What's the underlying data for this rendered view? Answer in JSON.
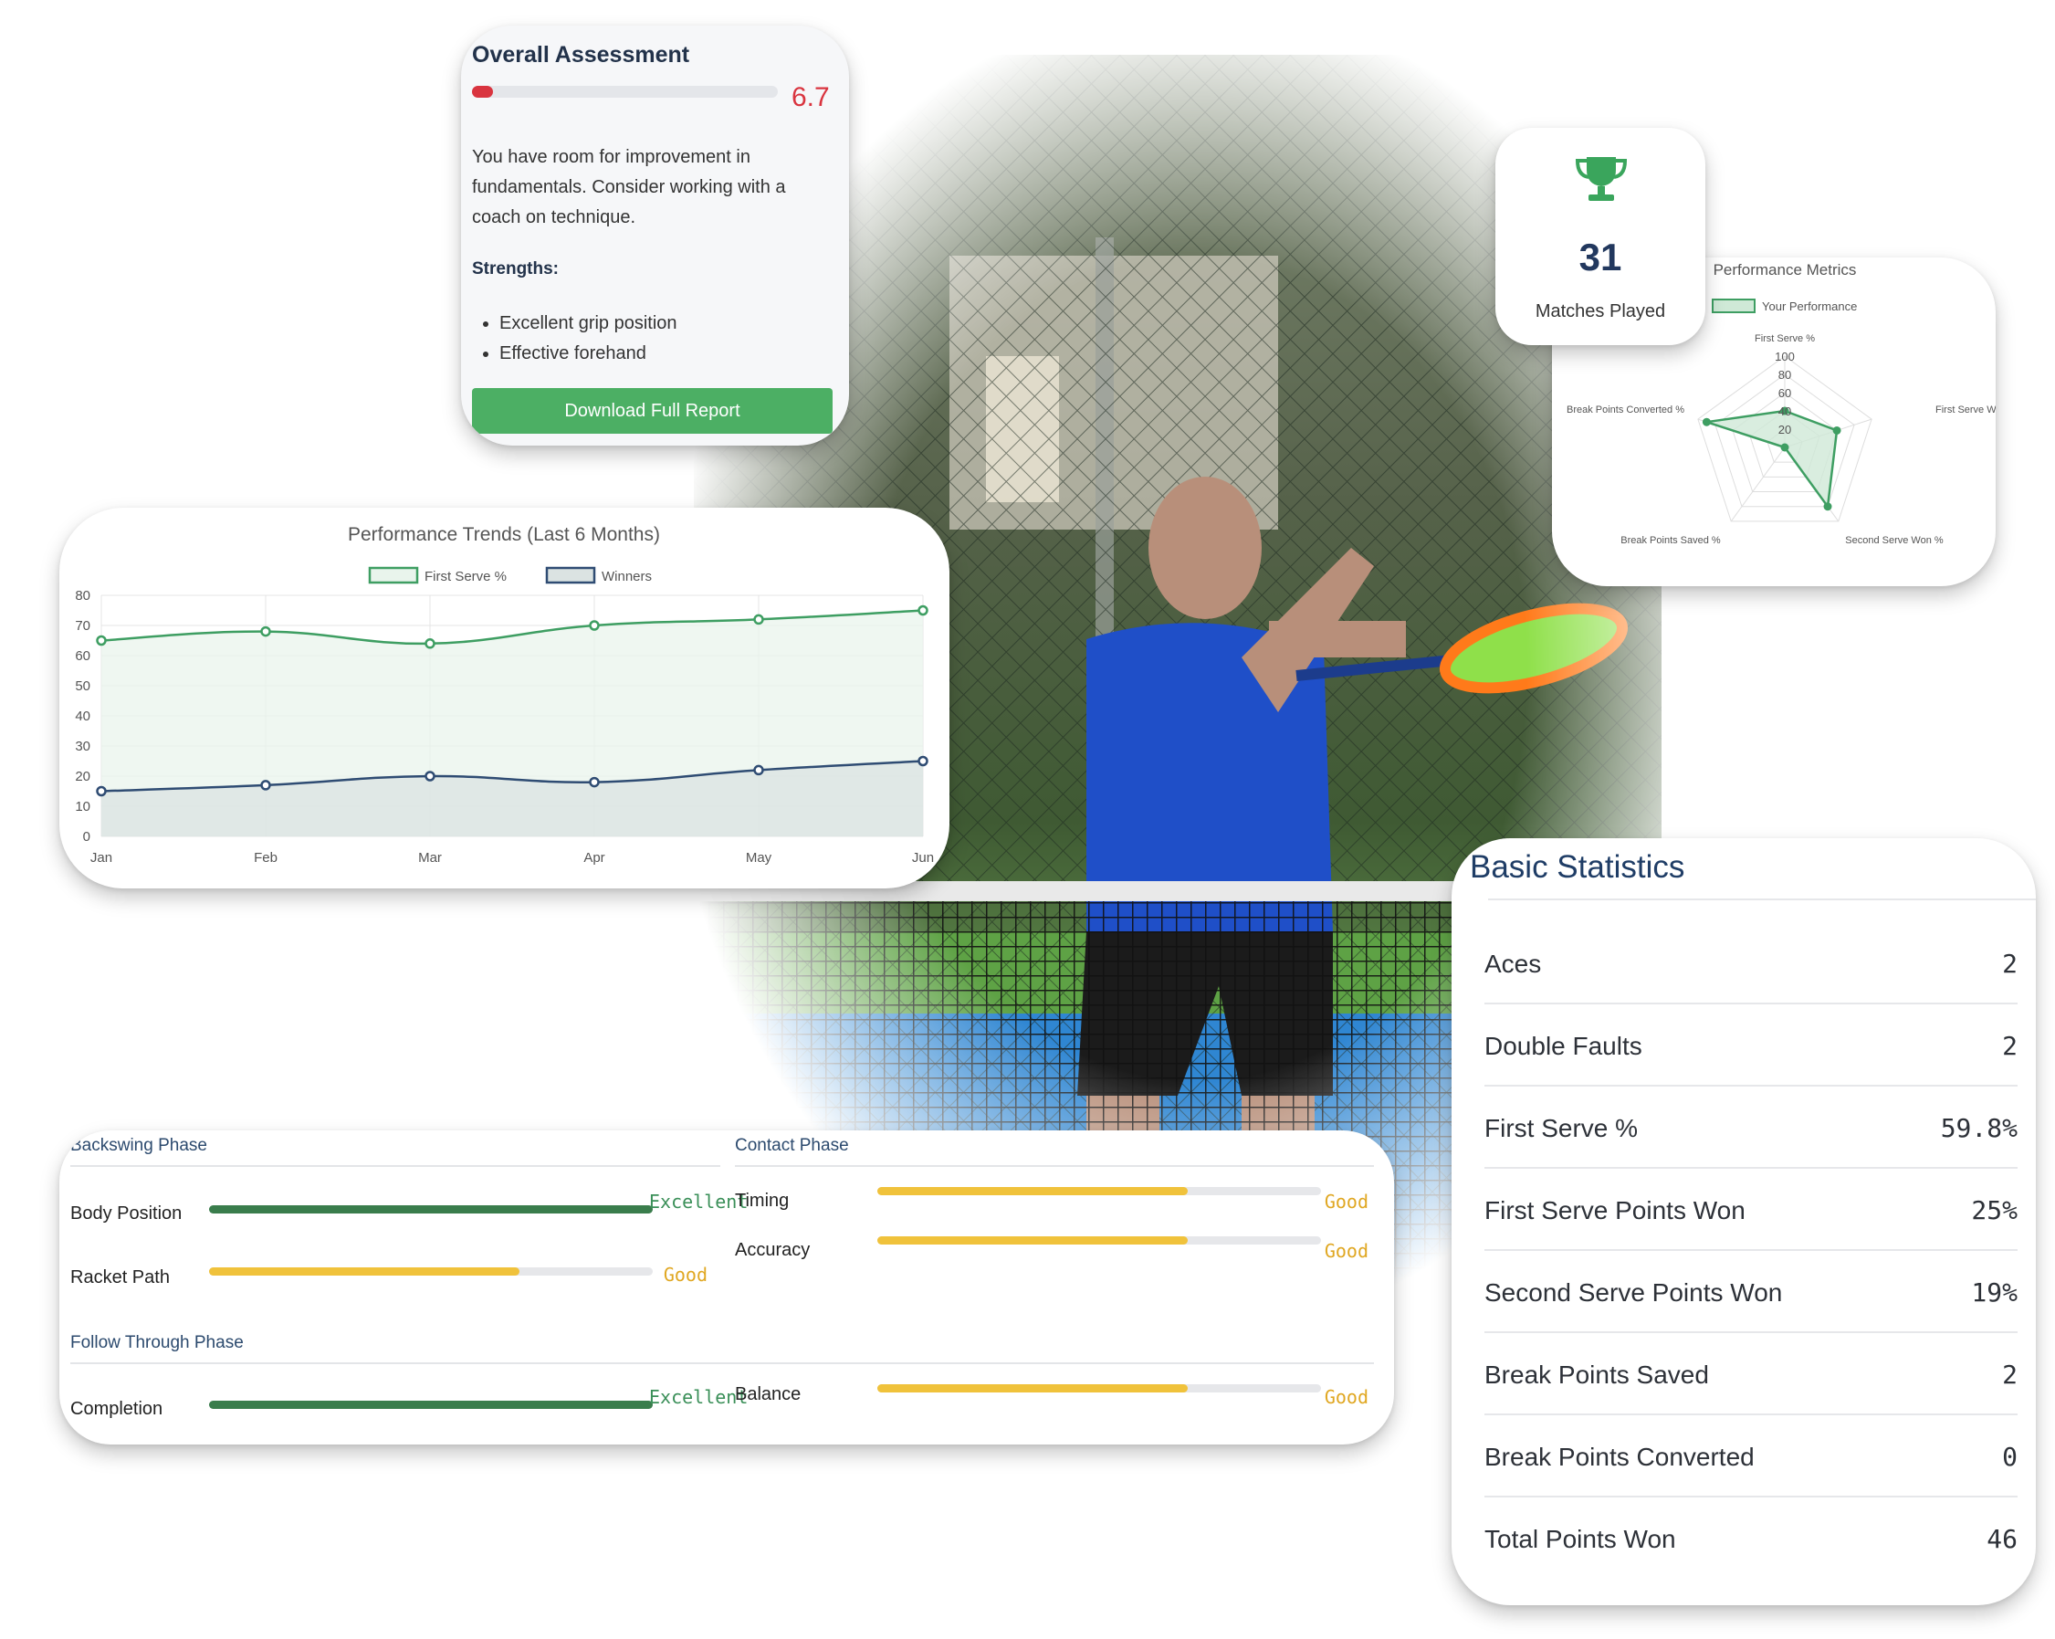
{
  "assessment": {
    "title": "Overall Assessment",
    "score": "6.7",
    "score_fraction": 0.07,
    "description": "You have room for improvement in fundamentals. Consider working with a coach on technique.",
    "strengths_label": "Strengths:",
    "strengths": [
      "Excellent grip position",
      "Effective forehand"
    ],
    "download_label": "Download Full Report",
    "colors": {
      "score": "#d9343f",
      "button": "#4caf64"
    }
  },
  "matches": {
    "icon": "trophy-icon",
    "count": "31",
    "label": "Matches Played",
    "colors": {
      "icon": "#3aa55c",
      "count": "#22385e"
    }
  },
  "chart_data": [
    {
      "type": "line",
      "title": "Performance Trends (Last 6 Months)",
      "categories": [
        "Jan",
        "Feb",
        "Mar",
        "Apr",
        "May",
        "Jun"
      ],
      "series": [
        {
          "name": "First Serve %",
          "values": [
            65,
            68,
            64,
            70,
            72,
            75
          ],
          "color": "#3e9e62",
          "fill": "#e9f4ec"
        },
        {
          "name": "Winners",
          "values": [
            15,
            17,
            20,
            18,
            22,
            25
          ],
          "color": "#2f4c73",
          "fill": "#dbe3e2"
        }
      ],
      "ylim": [
        0,
        80
      ],
      "yticks": [
        0,
        10,
        20,
        30,
        40,
        50,
        60,
        70,
        80
      ],
      "grid": true,
      "area": true,
      "legend": "top"
    },
    {
      "type": "radar",
      "title": "Performance Metrics",
      "axes": [
        "First Serve %",
        "First Serve Won %",
        "Second Serve Won %",
        "Break Points Saved %",
        "Break Points Converted %"
      ],
      "series": [
        {
          "name": "Your Performance",
          "values": [
            40,
            60,
            80,
            0,
            90
          ],
          "color": "#3e9e62",
          "fill": "#cfe9d7"
        }
      ],
      "rlim": [
        0,
        100
      ],
      "rticks": [
        20,
        40,
        60,
        80,
        100
      ],
      "legend": "top"
    }
  ],
  "phases": {
    "backswing": {
      "title": "Backswing Phase",
      "metrics": [
        {
          "name": "Body Position",
          "rating": "Excellent",
          "value": 1.0
        },
        {
          "name": "Racket Path",
          "rating": "Good",
          "value": 0.7
        }
      ]
    },
    "contact": {
      "title": "Contact Phase",
      "metrics": [
        {
          "name": "Timing",
          "rating": "Good",
          "value": 0.7
        },
        {
          "name": "Accuracy",
          "rating": "Good",
          "value": 0.7
        }
      ]
    },
    "follow_through": {
      "title": "Follow Through Phase",
      "metrics": [
        {
          "name": "Completion",
          "rating": "Excellent",
          "value": 1.0
        },
        {
          "name": "Balance",
          "rating": "Good",
          "value": 0.7
        }
      ]
    },
    "colors": {
      "excellent": "#3a7d4c",
      "good": "#f0c23b",
      "excellent_text": "#3a8f58",
      "good_text": "#e0a722"
    }
  },
  "basic_stats": {
    "title": "Basic Statistics",
    "rows": [
      {
        "label": "Aces",
        "value": "2"
      },
      {
        "label": "Double Faults",
        "value": "2"
      },
      {
        "label": "First Serve %",
        "value": "59.8%"
      },
      {
        "label": "First Serve Points Won",
        "value": "25%"
      },
      {
        "label": "Second Serve Points Won",
        "value": "19%"
      },
      {
        "label": "Break Points Saved",
        "value": "2"
      },
      {
        "label": "Break Points Converted",
        "value": "0"
      },
      {
        "label": "Total Points Won",
        "value": "46"
      }
    ]
  }
}
